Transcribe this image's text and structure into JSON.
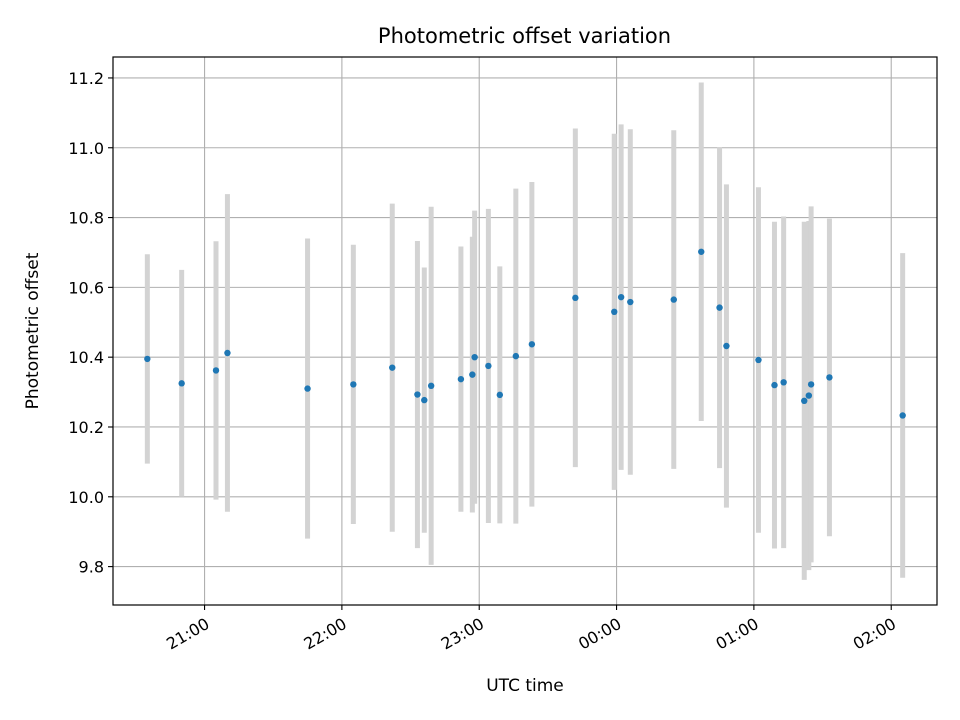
{
  "chart_data": {
    "type": "scatter",
    "title": "Photometric offset variation",
    "xlabel": "UTC time",
    "ylabel": "Photometric offset",
    "x_axis": "time",
    "x_ticks": [
      "21:00",
      "22:00",
      "23:00",
      "00:00",
      "01:00",
      "02:00"
    ],
    "x_tick_times": [
      "21:00",
      "22:00",
      "23:00",
      "24:00",
      "25:00",
      "26:00"
    ],
    "xlim": [
      "20:20",
      "26:20"
    ],
    "y_ticks": [
      9.8,
      10.0,
      10.2,
      10.4,
      10.6,
      10.8,
      11.0,
      11.2
    ],
    "ylim": [
      9.69,
      11.26
    ],
    "grid": true,
    "point_color": "#1f77b4",
    "errorbar_color": "#d3d3d3",
    "points": [
      {
        "t": "20:35",
        "y": 10.395,
        "err": 0.3
      },
      {
        "t": "20:50",
        "y": 10.325,
        "err": 0.325
      },
      {
        "t": "21:05",
        "y": 10.362,
        "err": 0.37
      },
      {
        "t": "21:10",
        "y": 10.412,
        "err": 0.455
      },
      {
        "t": "21:45",
        "y": 10.31,
        "err": 0.43
      },
      {
        "t": "22:05",
        "y": 10.322,
        "err": 0.4
      },
      {
        "t": "22:22",
        "y": 10.37,
        "err": 0.47
      },
      {
        "t": "22:33",
        "y": 10.293,
        "err": 0.44
      },
      {
        "t": "22:36",
        "y": 10.277,
        "err": 0.38
      },
      {
        "t": "22:39",
        "y": 10.318,
        "err": 0.513
      },
      {
        "t": "22:52",
        "y": 10.337,
        "err": 0.38
      },
      {
        "t": "22:57",
        "y": 10.35,
        "err": 0.395
      },
      {
        "t": "22:58",
        "y": 10.4,
        "err": 0.42
      },
      {
        "t": "23:04",
        "y": 10.375,
        "err": 0.45
      },
      {
        "t": "23:09",
        "y": 10.292,
        "err": 0.368
      },
      {
        "t": "23:16",
        "y": 10.403,
        "err": 0.48
      },
      {
        "t": "23:23",
        "y": 10.437,
        "err": 0.465
      },
      {
        "t": "23:42",
        "y": 10.57,
        "err": 0.485
      },
      {
        "t": "23:59",
        "y": 10.53,
        "err": 0.51
      },
      {
        "t": "24:02",
        "y": 10.572,
        "err": 0.495
      },
      {
        "t": "24:06",
        "y": 10.558,
        "err": 0.495
      },
      {
        "t": "24:25",
        "y": 10.565,
        "err": 0.485
      },
      {
        "t": "24:37",
        "y": 10.702,
        "err": 0.485
      },
      {
        "t": "24:45",
        "y": 10.542,
        "err": 0.46
      },
      {
        "t": "24:48",
        "y": 10.432,
        "err": 0.463
      },
      {
        "t": "25:02",
        "y": 10.392,
        "err": 0.495
      },
      {
        "t": "25:09",
        "y": 10.32,
        "err": 0.468
      },
      {
        "t": "25:13",
        "y": 10.328,
        "err": 0.475
      },
      {
        "t": "25:22",
        "y": 10.275,
        "err": 0.513
      },
      {
        "t": "25:24",
        "y": 10.29,
        "err": 0.5
      },
      {
        "t": "25:25",
        "y": 10.322,
        "err": 0.51
      },
      {
        "t": "25:33",
        "y": 10.342,
        "err": 0.455
      },
      {
        "t": "26:05",
        "y": 10.233,
        "err": 0.465
      }
    ]
  }
}
